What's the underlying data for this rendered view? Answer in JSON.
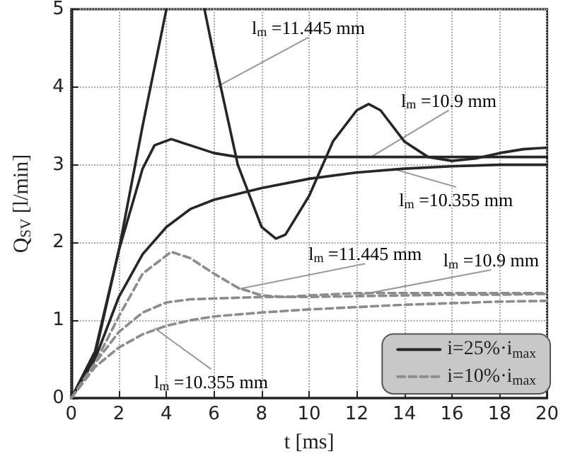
{
  "chart_data": {
    "type": "line",
    "xlabel": "t [ms]",
    "ylabel": "Q$_{SV}$ [l/min]",
    "xlim": [
      0,
      20
    ],
    "xticks": [
      0,
      2,
      4,
      6,
      8,
      10,
      12,
      14,
      16,
      18,
      20
    ],
    "ylim": [
      0,
      5
    ],
    "yticks": [
      0,
      1,
      2,
      3,
      4,
      5
    ],
    "grid": true,
    "legend": "bottom right",
    "marker": "none",
    "series": [
      {
        "name": "i=25%·i$_{max}$",
        "color": "#262626",
        "line_style": "solid",
        "x": [
          0,
          1,
          2,
          3,
          4.0,
          4.8,
          5.6,
          6,
          7,
          8,
          8.6,
          9,
          10,
          11,
          12,
          12.5,
          13,
          14,
          15,
          16,
          17,
          18,
          19,
          20
        ],
        "values": [
          0,
          0.6,
          1.9,
          3.5,
          5,
          null,
          5,
          4.4,
          3.0,
          2.2,
          2.05,
          2.1,
          2.6,
          3.3,
          3.7,
          3.78,
          3.7,
          3.3,
          3.1,
          3.05,
          3.08,
          3.15,
          3.2,
          3.22
        ]
      },
      {
        "color": "#262626",
        "line_style": "solid",
        "x": [
          0,
          1,
          2,
          3,
          3.5,
          4.2,
          5,
          6,
          7,
          8,
          10,
          12,
          14,
          16,
          18,
          20
        ],
        "values": [
          0,
          0.55,
          1.9,
          2.95,
          3.25,
          3.33,
          3.25,
          3.15,
          3.1,
          3.1,
          3.1,
          3.1,
          3.1,
          3.1,
          3.1,
          3.1
        ]
      },
      {
        "color": "#262626",
        "line_style": "solid",
        "x": [
          0,
          1,
          2,
          3,
          4,
          5,
          6,
          8,
          10,
          12,
          14,
          16,
          18,
          20
        ],
        "values": [
          0,
          0.5,
          1.3,
          1.85,
          2.2,
          2.43,
          2.55,
          2.7,
          2.82,
          2.9,
          2.95,
          2.98,
          3.0,
          3.0
        ]
      },
      {
        "name": "i=10%·i$_{max}$",
        "color": "#8c8c8c",
        "line_style": "dashed",
        "x": [
          0,
          1,
          2,
          3,
          4.2,
          5,
          6,
          7,
          8,
          9,
          10,
          12,
          14,
          16,
          18,
          20
        ],
        "values": [
          0,
          0.45,
          1.05,
          1.6,
          1.88,
          1.8,
          1.6,
          1.42,
          1.32,
          1.3,
          1.32,
          1.35,
          1.35,
          1.35,
          1.35,
          1.35
        ]
      },
      {
        "color": "#8c8c8c",
        "line_style": "dashed",
        "x": [
          0,
          1,
          2,
          3,
          4,
          5,
          6,
          8,
          10,
          12,
          14,
          16,
          18,
          20
        ],
        "values": [
          0,
          0.45,
          0.85,
          1.1,
          1.23,
          1.27,
          1.28,
          1.3,
          1.3,
          1.31,
          1.32,
          1.33,
          1.33,
          1.34
        ]
      },
      {
        "color": "#8c8c8c",
        "line_style": "dashed",
        "x": [
          0,
          1,
          2,
          3,
          4,
          5,
          6,
          8,
          10,
          12,
          14,
          16,
          18,
          20
        ],
        "values": [
          0,
          0.4,
          0.65,
          0.82,
          0.93,
          1.0,
          1.05,
          1.1,
          1.14,
          1.17,
          1.2,
          1.22,
          1.24,
          1.25
        ]
      }
    ],
    "annotations": [
      {
        "text": "l$_{m}$ =11.445 mm",
        "x": 6.1,
        "y": 4.0
      },
      {
        "text": "l$_{m}$ =10.9 mm",
        "x": 12.6,
        "y": 3.1
      },
      {
        "text": "l$_{m}$ =10.355 mm",
        "x": 13.5,
        "y": 2.95
      },
      {
        "text": "l$_{m}$ =11.445 mm",
        "x": 7,
        "y": 1.4
      },
      {
        "text": "l$_{m}$ =10.9 mm",
        "x": 12,
        "y": 1.32
      },
      {
        "text": "l$_{m}$ =10.355 mm",
        "x": 3.5,
        "y": 0.9
      }
    ]
  }
}
